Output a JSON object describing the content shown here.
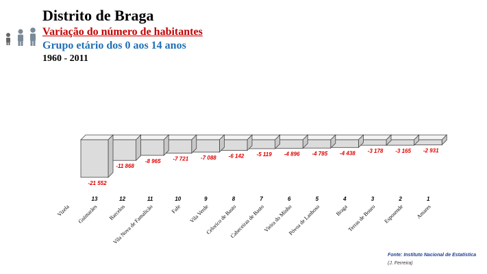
{
  "header": {
    "title": "Distrito de Braga",
    "subtitle": "Variação do número de habitantes",
    "group": "Grupo etário dos 0 aos 14 anos",
    "period": "1960 - 2011"
  },
  "icons": [
    "child-icon",
    "adult-icon",
    "adult-icon"
  ],
  "footer": {
    "source": "Fonte: Instituto Nacional de Estatística",
    "author": "(J. Ferreira)"
  },
  "colors": {
    "bar": "#dcdcdc",
    "value_label": "#e00000",
    "axis_label": "#000000"
  },
  "chart_data": {
    "type": "bar",
    "title": "",
    "xlabel": "",
    "ylabel": "",
    "categories": [
      "Vizela",
      "Guimarães",
      "Barcelos",
      "Vila Nova de Famalicão",
      "Fafe",
      "Vila Verde",
      "Celorico de Basto",
      "Cabeceiras de Basto",
      "Vieira do Minho",
      "Póvoa de Lanhoso",
      "Braga",
      "Terras de Bouro",
      "Esposende",
      "Amares"
    ],
    "ranks": [
      "",
      "13",
      "12",
      "11",
      "10",
      "9",
      "8",
      "7",
      "6",
      "5",
      "4",
      "3",
      "2",
      "1"
    ],
    "values": [
      null,
      -21552,
      -11868,
      -8965,
      -7721,
      -7088,
      -6142,
      -5119,
      -4896,
      -4785,
      -4438,
      -3178,
      -3165,
      -2931
    ],
    "value_labels": [
      "",
      "-21 552",
      "-11 868",
      "-8 965",
      "-7 721",
      "-7 088",
      "-6 142",
      "-5 119",
      "-4 896",
      "-4 785",
      "-4 438",
      "-3 178",
      "-3 165",
      "-2 931"
    ],
    "ylim": [
      -22000,
      0
    ],
    "grid": false,
    "legend": "none"
  }
}
